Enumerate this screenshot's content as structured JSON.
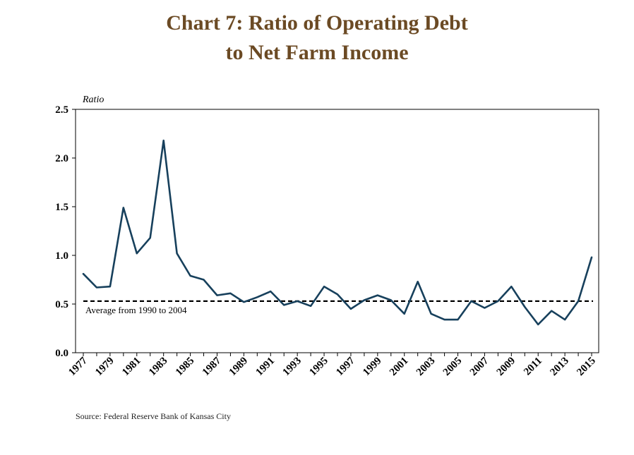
{
  "title_lines": [
    "Chart 7: Ratio of Operating Debt",
    "to Net Farm Income"
  ],
  "source": "Source: Federal Reserve Bank of Kansas City",
  "colors": {
    "title": "#6b4a24",
    "series": "#17405c",
    "reference": "#000000"
  },
  "chart_data": {
    "type": "line",
    "ylabel": "Ratio",
    "xlabel": "",
    "ylim": [
      0,
      2.5
    ],
    "yticks": [
      "0.0",
      "0.5",
      "1.0",
      "1.5",
      "2.0",
      "2.5"
    ],
    "xtick_labels": [
      "1977",
      "1979",
      "1981",
      "1983",
      "1985",
      "1987",
      "1989",
      "1991",
      "1993",
      "1995",
      "1997",
      "1999",
      "2001",
      "2003",
      "2005",
      "2007",
      "2009",
      "2011",
      "2013",
      "2015"
    ],
    "x": [
      1977,
      1978,
      1979,
      1980,
      1981,
      1982,
      1983,
      1984,
      1985,
      1986,
      1987,
      1988,
      1989,
      1990,
      1991,
      1992,
      1993,
      1994,
      1995,
      1996,
      1997,
      1998,
      1999,
      2000,
      2001,
      2002,
      2003,
      2004,
      2005,
      2006,
      2007,
      2008,
      2009,
      2010,
      2011,
      2012,
      2013,
      2014,
      2015
    ],
    "series": [
      {
        "values": [
          0.81,
          0.67,
          0.68,
          1.49,
          1.02,
          1.18,
          2.18,
          1.02,
          0.79,
          0.75,
          0.59,
          0.61,
          0.52,
          0.57,
          0.63,
          0.49,
          0.53,
          0.48,
          0.68,
          0.6,
          0.45,
          0.54,
          0.59,
          0.54,
          0.4,
          0.73,
          0.4,
          0.34,
          0.34,
          0.53,
          0.46,
          0.53,
          0.68,
          0.47,
          0.29,
          0.43,
          0.34,
          0.53,
          0.98
        ]
      }
    ],
    "reference_line": {
      "value": 0.53,
      "label": "Average from 1990 to 2004",
      "style": "dashed"
    },
    "grid": false,
    "legend": "none"
  }
}
